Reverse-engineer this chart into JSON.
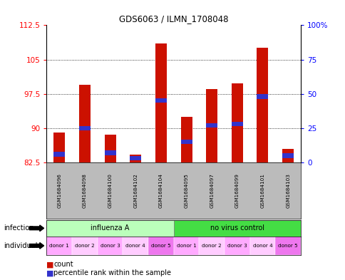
{
  "title": "GDS6063 / ILMN_1708048",
  "samples": [
    "GSM1684096",
    "GSM1684098",
    "GSM1684100",
    "GSM1684102",
    "GSM1684104",
    "GSM1684095",
    "GSM1684097",
    "GSM1684099",
    "GSM1684101",
    "GSM1684103"
  ],
  "counts": [
    89.0,
    99.5,
    88.5,
    84.2,
    108.5,
    92.5,
    98.5,
    99.8,
    107.5,
    85.5
  ],
  "percentile_ranks": [
    6,
    25,
    7,
    3,
    45,
    15,
    27,
    28,
    48,
    5
  ],
  "y_min": 82.5,
  "y_max": 112.5,
  "y_ticks_left": [
    82.5,
    90,
    97.5,
    105,
    112.5
  ],
  "y_ticks_right": [
    0,
    25,
    50,
    75,
    100
  ],
  "bar_color": "#cc1100",
  "blue_color": "#3333cc",
  "label_row_color": "#bbbbbb",
  "influ_color": "#bbffbb",
  "novirus_color": "#44dd44",
  "donor_colors": [
    "#ffaaff",
    "#ffccff",
    "#ffaaff",
    "#ffccff",
    "#ee77ee",
    "#ffaaff",
    "#ffccff",
    "#ffaaff",
    "#ffccff",
    "#ee77ee"
  ],
  "donors": [
    "donor 1",
    "donor 2",
    "donor 3",
    "donor 4",
    "donor 5",
    "donor 1",
    "donor 2",
    "donor 3",
    "donor 4",
    "donor 5"
  ]
}
